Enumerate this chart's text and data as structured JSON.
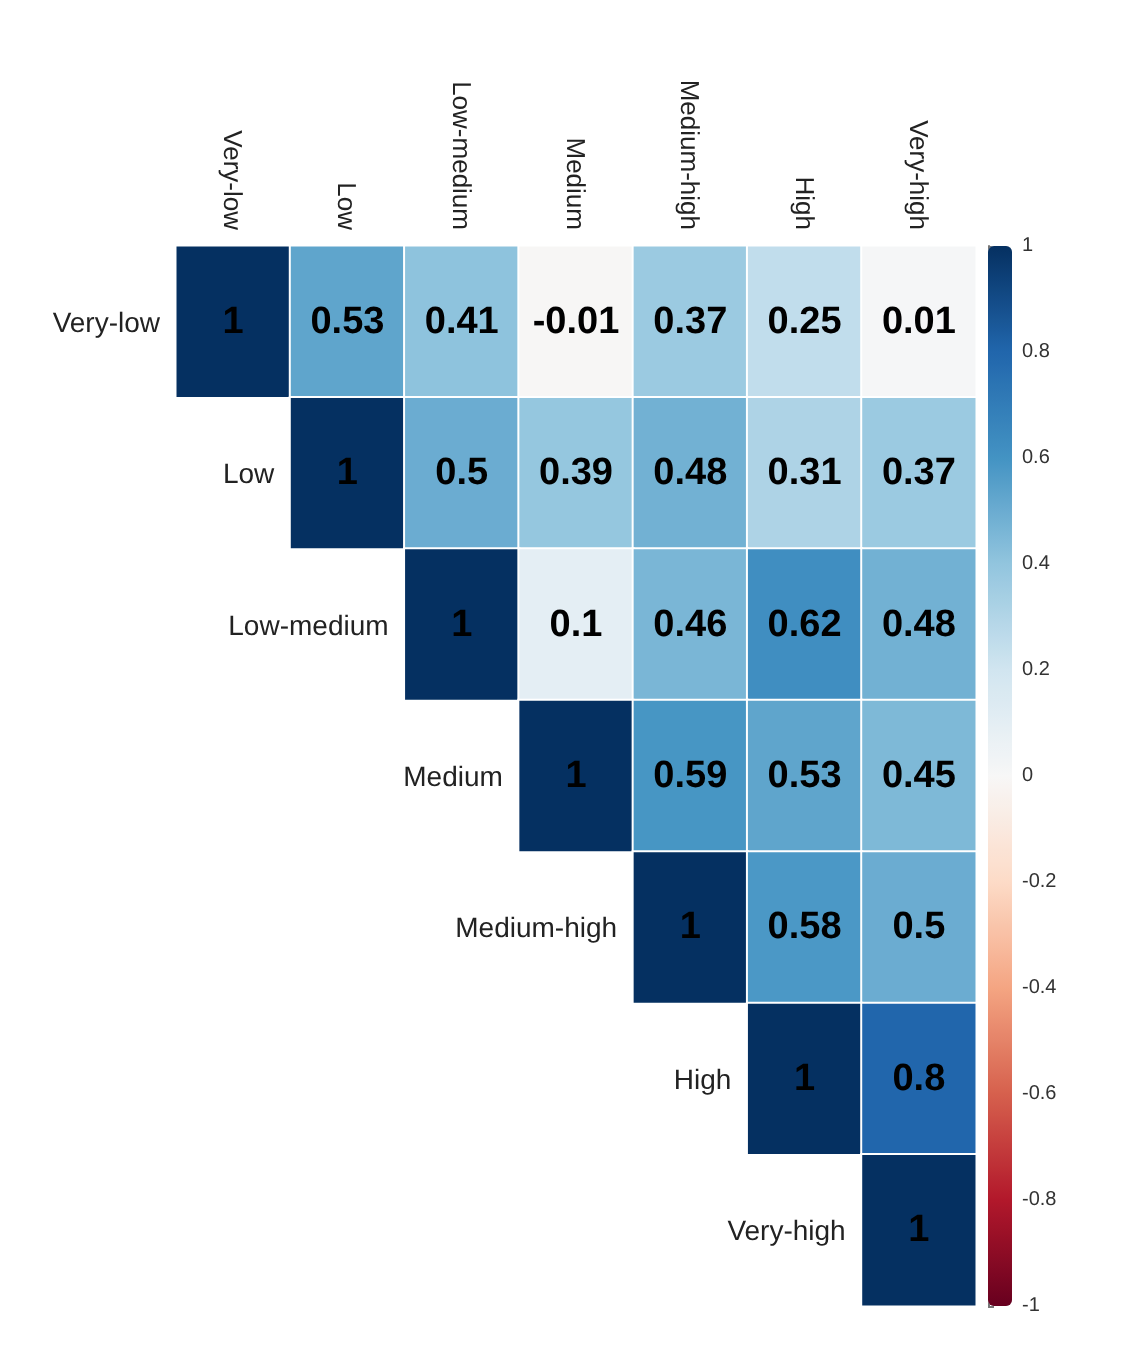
{
  "chart_data": {
    "type": "heatmap",
    "categories": [
      "Very-low",
      "Low",
      "Low-medium",
      "Medium",
      "Medium-high",
      "High",
      "Very-high"
    ],
    "y_categories": [
      "Very-low",
      "Low",
      "Low-medium",
      "Medium",
      "Medium-high",
      "High",
      "Very-high"
    ],
    "cells": [
      [
        1,
        0.53,
        0.41,
        -0.01,
        0.37,
        0.25,
        0.01
      ],
      [
        null,
        1,
        0.5,
        0.39,
        0.48,
        0.31,
        0.37
      ],
      [
        null,
        null,
        1,
        0.1,
        0.46,
        0.62,
        0.48
      ],
      [
        null,
        null,
        null,
        1,
        0.59,
        0.53,
        0.45
      ],
      [
        null,
        null,
        null,
        null,
        1,
        0.58,
        0.5
      ],
      [
        null,
        null,
        null,
        null,
        null,
        1,
        0.8
      ],
      [
        null,
        null,
        null,
        null,
        null,
        null,
        1
      ]
    ],
    "clim": [
      -1,
      1
    ],
    "cticks": [
      -1,
      -0.8,
      -0.6,
      -0.4,
      -0.2,
      0,
      0.2,
      0.4,
      0.6,
      0.8,
      1
    ],
    "data_labels": true
  }
}
